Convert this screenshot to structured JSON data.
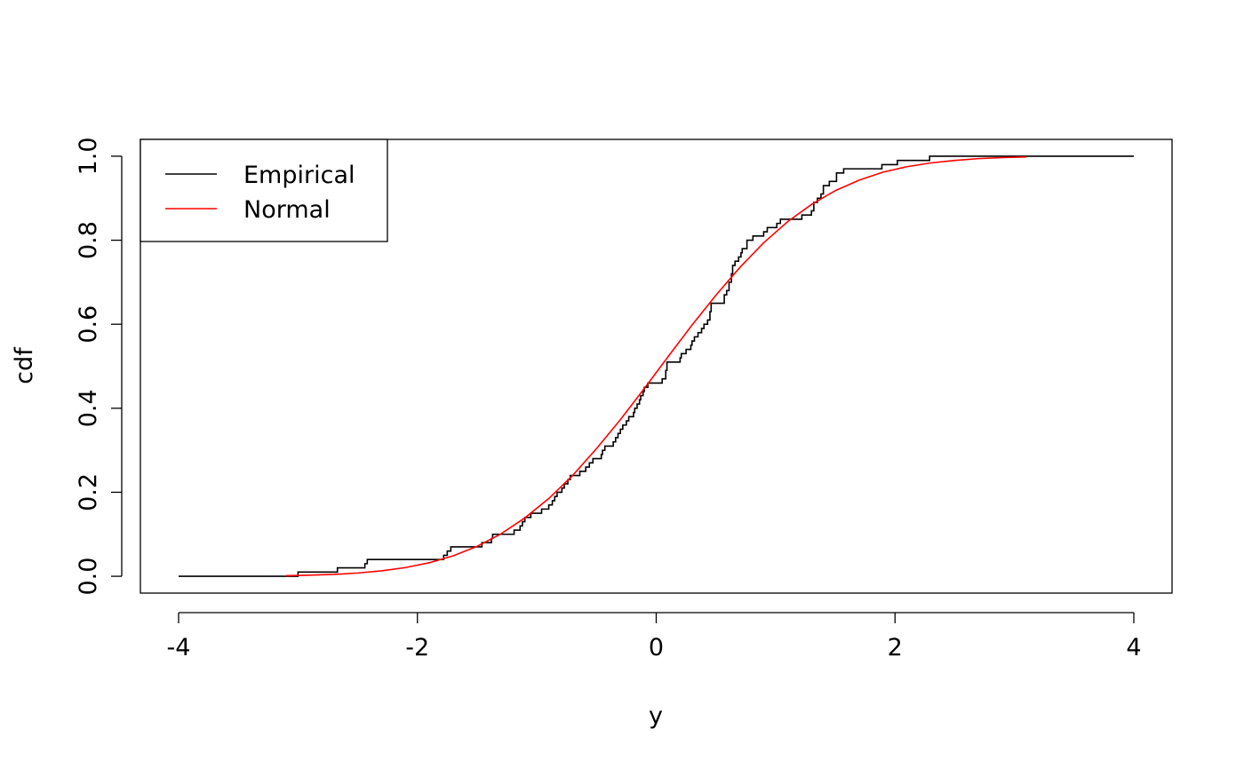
{
  "chart_data": {
    "type": "line",
    "x_label": "y",
    "y_label": "cdf",
    "xlim": [
      -4.32,
      4.32
    ],
    "ylim": [
      -0.04,
      1.04
    ],
    "xticks": [
      -4,
      -2,
      0,
      2,
      4
    ],
    "yticks": [
      {
        "value": 0,
        "label": "0.0"
      },
      0.2,
      0.4,
      0.6,
      0.8,
      {
        "value": 1,
        "label": "1.0"
      }
    ],
    "legend": "top-left",
    "series": [
      {
        "name": "Empirical",
        "color": "#000000",
        "step": true,
        "x": [
          -4,
          -3.0,
          -2.67,
          -2.44,
          -2.42,
          -1.78,
          -1.75,
          -1.72,
          -1.46,
          -1.38,
          -1.37,
          -1.19,
          -1.14,
          -1.12,
          -1.1,
          -1.05,
          -0.96,
          -0.9,
          -0.87,
          -0.85,
          -0.83,
          -0.79,
          -0.77,
          -0.74,
          -0.72,
          -0.64,
          -0.59,
          -0.56,
          -0.53,
          -0.46,
          -0.45,
          -0.43,
          -0.36,
          -0.34,
          -0.32,
          -0.3,
          -0.28,
          -0.25,
          -0.23,
          -0.19,
          -0.18,
          -0.16,
          -0.14,
          -0.13,
          -0.11,
          -0.1,
          -0.07,
          0.05,
          0.08,
          0.09,
          0.2,
          0.21,
          0.25,
          0.29,
          0.3,
          0.32,
          0.35,
          0.38,
          0.4,
          0.43,
          0.45,
          0.46,
          0.57,
          0.59,
          0.61,
          0.63,
          0.64,
          0.66,
          0.69,
          0.71,
          0.72,
          0.76,
          0.81,
          0.9,
          0.93,
          1.01,
          1.04,
          1.22,
          1.3,
          1.32,
          1.35,
          1.38,
          1.4,
          1.45,
          1.51,
          1.57,
          1.89,
          2.02,
          2.29,
          4.0
        ],
        "values": [
          0,
          0.01,
          0.02,
          0.03,
          0.04,
          0.05,
          0.06,
          0.07,
          0.08,
          0.09,
          0.1,
          0.11,
          0.12,
          0.13,
          0.14,
          0.15,
          0.16,
          0.17,
          0.18,
          0.19,
          0.2,
          0.21,
          0.22,
          0.23,
          0.24,
          0.25,
          0.26,
          0.27,
          0.28,
          0.29,
          0.3,
          0.31,
          0.32,
          0.33,
          0.34,
          0.35,
          0.36,
          0.37,
          0.38,
          0.39,
          0.4,
          0.41,
          0.42,
          0.43,
          0.44,
          0.45,
          0.46,
          0.47,
          0.49,
          0.51,
          0.52,
          0.53,
          0.54,
          0.55,
          0.56,
          0.57,
          0.58,
          0.59,
          0.6,
          0.61,
          0.63,
          0.65,
          0.67,
          0.68,
          0.7,
          0.72,
          0.74,
          0.75,
          0.76,
          0.77,
          0.78,
          0.8,
          0.81,
          0.82,
          0.83,
          0.84,
          0.85,
          0.86,
          0.87,
          0.89,
          0.9,
          0.91,
          0.93,
          0.94,
          0.96,
          0.97,
          0.98,
          0.99,
          1.0,
          1.0
        ]
      },
      {
        "name": "Normal",
        "color": "#ff0000",
        "step": false,
        "x": [
          -3.1,
          -2.9,
          -2.7,
          -2.5,
          -2.3,
          -2.1,
          -1.9,
          -1.7,
          -1.5,
          -1.3,
          -1.1,
          -0.9,
          -0.7,
          -0.5,
          -0.3,
          -0.1,
          0.1,
          0.3,
          0.5,
          0.7,
          0.9,
          1.1,
          1.3,
          1.5,
          1.7,
          1.9,
          2.1,
          2.3,
          2.5,
          2.7,
          2.9,
          3.1
        ],
        "values": [
          0.0013,
          0.0026,
          0.0045,
          0.0078,
          0.0129,
          0.0208,
          0.0323,
          0.0488,
          0.0712,
          0.101,
          0.139,
          0.185,
          0.24,
          0.304,
          0.373,
          0.447,
          0.523,
          0.598,
          0.669,
          0.735,
          0.794,
          0.844,
          0.885,
          0.918,
          0.943,
          0.962,
          0.975,
          0.984,
          0.99,
          0.9943,
          0.9968,
          0.9982
        ]
      }
    ]
  }
}
